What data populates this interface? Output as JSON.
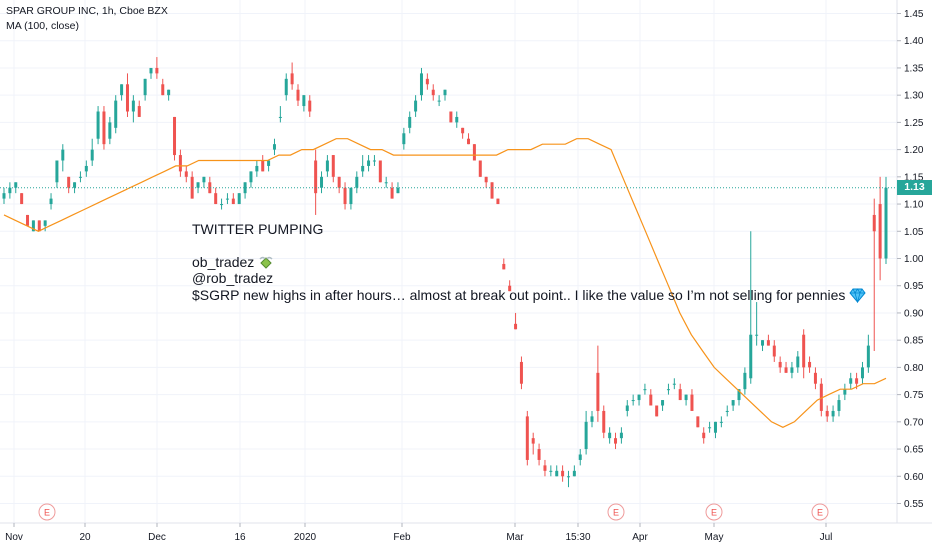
{
  "header": {
    "line1": "SPAR GROUP INC, 1h, Cboe BZX",
    "line2": "MA (100, close)"
  },
  "annotation": {
    "heading": "TWITTER PUMPING",
    "handle": "ob_tradez",
    "handle_icon": "money-with-wings-icon",
    "user": "@rob_tradez",
    "body": "$SGRP new highs in after hours… almost at break out point.. I like the value so I’m not selling for pennies",
    "body_icon": "gem-icon"
  },
  "price_badge": "1.13",
  "colors": {
    "up": "#26a69a",
    "down": "#ef5350",
    "ma": "#f7931a",
    "last_line": "#26a69a"
  },
  "chart_data": {
    "type": "candlestick",
    "symbol": "SPAR GROUP INC, 1h, Cboe BZX",
    "y_ticks": [
      "1.45",
      "1.40",
      "1.35",
      "1.30",
      "1.25",
      "1.20",
      "1.15",
      "1.10",
      "1.05",
      "1.00",
      "0.95",
      "0.90",
      "0.85",
      "0.80",
      "0.75",
      "0.70",
      "0.65",
      "0.60",
      "0.55"
    ],
    "ylim": [
      0.52,
      1.47
    ],
    "x_ticks": [
      "Nov",
      "20",
      "Dec",
      "16",
      "2020",
      "Feb",
      "Mar",
      "15:30",
      "Apr",
      "May",
      "Jul"
    ],
    "earnings_markers": [
      "E",
      "E",
      "E",
      "E"
    ],
    "last_price": 1.13,
    "ma_label": "MA (100, close)",
    "candles": [
      [
        1.11,
        1.13,
        1.1,
        1.12
      ],
      [
        1.12,
        1.14,
        1.11,
        1.13
      ],
      [
        1.13,
        1.14,
        1.12,
        1.14
      ],
      [
        1.12,
        1.12,
        1.1,
        1.1
      ],
      [
        1.08,
        1.08,
        1.06,
        1.06
      ],
      [
        1.05,
        1.07,
        1.05,
        1.07
      ],
      [
        1.07,
        1.07,
        1.05,
        1.05
      ],
      [
        1.06,
        1.07,
        1.05,
        1.07
      ],
      [
        1.1,
        1.12,
        1.09,
        1.11
      ],
      [
        1.14,
        1.18,
        1.13,
        1.18
      ],
      [
        1.18,
        1.21,
        1.16,
        1.2
      ],
      [
        1.15,
        1.15,
        1.12,
        1.13
      ],
      [
        1.13,
        1.14,
        1.12,
        1.14
      ],
      [
        1.15,
        1.16,
        1.14,
        1.15
      ],
      [
        1.16,
        1.18,
        1.15,
        1.17
      ],
      [
        1.18,
        1.22,
        1.17,
        1.2
      ],
      [
        1.22,
        1.28,
        1.21,
        1.27
      ],
      [
        1.27,
        1.28,
        1.2,
        1.21
      ],
      [
        1.22,
        1.26,
        1.21,
        1.25
      ],
      [
        1.24,
        1.3,
        1.23,
        1.29
      ],
      [
        1.3,
        1.32,
        1.29,
        1.32
      ],
      [
        1.32,
        1.34,
        1.26,
        1.27
      ],
      [
        1.27,
        1.3,
        1.25,
        1.29
      ],
      [
        1.28,
        1.29,
        1.26,
        1.26
      ],
      [
        1.3,
        1.33,
        1.29,
        1.33
      ],
      [
        1.34,
        1.35,
        1.33,
        1.35
      ],
      [
        1.35,
        1.37,
        1.33,
        1.34
      ],
      [
        1.32,
        1.33,
        1.3,
        1.3
      ],
      [
        1.3,
        1.31,
        1.29,
        1.31
      ],
      [
        1.26,
        1.26,
        1.18,
        1.19
      ],
      [
        1.19,
        1.2,
        1.15,
        1.16
      ],
      [
        1.16,
        1.17,
        1.14,
        1.15
      ],
      [
        1.15,
        1.16,
        1.11,
        1.11
      ],
      [
        1.13,
        1.14,
        1.12,
        1.14
      ],
      [
        1.14,
        1.15,
        1.13,
        1.15
      ],
      [
        1.14,
        1.15,
        1.12,
        1.12
      ],
      [
        1.12,
        1.13,
        1.1,
        1.1
      ],
      [
        1.1,
        1.11,
        1.09,
        1.1
      ],
      [
        1.11,
        1.12,
        1.1,
        1.11
      ],
      [
        1.11,
        1.12,
        1.1,
        1.1
      ],
      [
        1.1,
        1.12,
        1.1,
        1.12
      ],
      [
        1.12,
        1.14,
        1.11,
        1.14
      ],
      [
        1.14,
        1.16,
        1.13,
        1.16
      ],
      [
        1.16,
        1.18,
        1.15,
        1.17
      ],
      [
        1.18,
        1.19,
        1.16,
        1.16
      ],
      [
        1.17,
        1.18,
        1.16,
        1.18
      ],
      [
        1.2,
        1.22,
        1.19,
        1.21
      ],
      [
        1.26,
        1.28,
        1.25,
        1.26
      ],
      [
        1.3,
        1.34,
        1.29,
        1.33
      ],
      [
        1.34,
        1.36,
        1.31,
        1.32
      ],
      [
        1.31,
        1.32,
        1.28,
        1.29
      ],
      [
        1.28,
        1.3,
        1.27,
        1.3
      ],
      [
        1.29,
        1.3,
        1.26,
        1.27
      ],
      [
        1.18,
        1.2,
        1.08,
        1.12
      ],
      [
        1.13,
        1.16,
        1.12,
        1.15
      ],
      [
        1.16,
        1.19,
        1.15,
        1.18
      ],
      [
        1.19,
        1.19,
        1.14,
        1.15
      ],
      [
        1.15,
        1.15,
        1.12,
        1.13
      ],
      [
        1.13,
        1.14,
        1.09,
        1.1
      ],
      [
        1.1,
        1.13,
        1.09,
        1.13
      ],
      [
        1.13,
        1.16,
        1.12,
        1.15
      ],
      [
        1.16,
        1.19,
        1.15,
        1.17
      ],
      [
        1.17,
        1.19,
        1.16,
        1.18
      ],
      [
        1.18,
        1.19,
        1.17,
        1.18
      ],
      [
        1.18,
        1.18,
        1.14,
        1.14
      ],
      [
        1.14,
        1.15,
        1.13,
        1.14
      ],
      [
        1.13,
        1.14,
        1.11,
        1.11
      ],
      [
        1.12,
        1.14,
        1.12,
        1.13
      ],
      [
        1.21,
        1.24,
        1.2,
        1.23
      ],
      [
        1.24,
        1.27,
        1.23,
        1.26
      ],
      [
        1.27,
        1.3,
        1.26,
        1.29
      ],
      [
        1.3,
        1.35,
        1.29,
        1.34
      ],
      [
        1.33,
        1.34,
        1.31,
        1.32
      ],
      [
        1.31,
        1.32,
        1.29,
        1.3
      ],
      [
        1.29,
        1.3,
        1.28,
        1.29
      ],
      [
        1.3,
        1.31,
        1.29,
        1.31
      ],
      [
        1.27,
        1.27,
        1.25,
        1.25
      ],
      [
        1.25,
        1.27,
        1.24,
        1.26
      ],
      [
        1.24,
        1.24,
        1.22,
        1.23
      ],
      [
        1.22,
        1.23,
        1.21,
        1.21
      ],
      [
        1.21,
        1.21,
        1.18,
        1.18
      ],
      [
        1.18,
        1.18,
        1.15,
        1.15
      ],
      [
        1.15,
        1.15,
        1.13,
        1.14
      ],
      [
        1.14,
        1.14,
        1.11,
        1.11
      ],
      [
        1.11,
        1.11,
        1.1,
        1.1
      ],
      [
        0.99,
        1.0,
        0.98,
        0.98
      ],
      [
        0.95,
        0.96,
        0.94,
        0.94
      ],
      [
        0.88,
        0.9,
        0.87,
        0.87
      ],
      [
        0.81,
        0.82,
        0.76,
        0.77
      ],
      [
        0.71,
        0.72,
        0.62,
        0.63
      ],
      [
        0.67,
        0.68,
        0.64,
        0.66
      ],
      [
        0.65,
        0.66,
        0.62,
        0.63
      ],
      [
        0.62,
        0.63,
        0.6,
        0.61
      ],
      [
        0.61,
        0.62,
        0.6,
        0.61
      ],
      [
        0.6,
        0.62,
        0.6,
        0.61
      ],
      [
        0.61,
        0.62,
        0.59,
        0.6
      ],
      [
        0.6,
        0.61,
        0.58,
        0.6
      ],
      [
        0.6,
        0.62,
        0.6,
        0.61
      ],
      [
        0.63,
        0.65,
        0.62,
        0.64
      ],
      [
        0.65,
        0.72,
        0.64,
        0.7
      ],
      [
        0.7,
        0.72,
        0.69,
        0.71
      ],
      [
        0.79,
        0.84,
        0.7,
        0.72
      ],
      [
        0.72,
        0.73,
        0.67,
        0.68
      ],
      [
        0.67,
        0.69,
        0.66,
        0.68
      ],
      [
        0.67,
        0.68,
        0.65,
        0.66
      ],
      [
        0.67,
        0.69,
        0.66,
        0.68
      ],
      [
        0.72,
        0.74,
        0.71,
        0.73
      ],
      [
        0.74,
        0.75,
        0.73,
        0.74
      ],
      [
        0.74,
        0.75,
        0.73,
        0.75
      ],
      [
        0.76,
        0.77,
        0.75,
        0.76
      ],
      [
        0.75,
        0.76,
        0.73,
        0.73
      ],
      [
        0.73,
        0.73,
        0.71,
        0.71
      ],
      [
        0.73,
        0.74,
        0.72,
        0.74
      ],
      [
        0.76,
        0.77,
        0.75,
        0.76
      ],
      [
        0.77,
        0.78,
        0.76,
        0.77
      ],
      [
        0.76,
        0.77,
        0.74,
        0.74
      ],
      [
        0.74,
        0.75,
        0.73,
        0.75
      ],
      [
        0.75,
        0.76,
        0.72,
        0.72
      ],
      [
        0.71,
        0.71,
        0.69,
        0.69
      ],
      [
        0.68,
        0.69,
        0.66,
        0.67
      ],
      [
        0.69,
        0.7,
        0.68,
        0.69
      ],
      [
        0.68,
        0.7,
        0.67,
        0.7
      ],
      [
        0.7,
        0.71,
        0.69,
        0.7
      ],
      [
        0.72,
        0.73,
        0.71,
        0.72
      ],
      [
        0.73,
        0.74,
        0.72,
        0.74
      ],
      [
        0.74,
        0.76,
        0.73,
        0.76
      ],
      [
        0.76,
        0.8,
        0.75,
        0.79
      ],
      [
        0.78,
        1.05,
        0.77,
        0.86
      ],
      [
        0.86,
        0.92,
        0.84,
        0.86
      ],
      [
        0.84,
        0.85,
        0.83,
        0.85
      ],
      [
        0.85,
        0.86,
        0.84,
        0.84
      ],
      [
        0.84,
        0.85,
        0.81,
        0.82
      ],
      [
        0.81,
        0.82,
        0.79,
        0.8
      ],
      [
        0.8,
        0.81,
        0.79,
        0.79
      ],
      [
        0.79,
        0.81,
        0.78,
        0.8
      ],
      [
        0.8,
        0.83,
        0.79,
        0.82
      ],
      [
        0.86,
        0.87,
        0.78,
        0.8
      ],
      [
        0.81,
        0.82,
        0.79,
        0.8
      ],
      [
        0.79,
        0.8,
        0.76,
        0.77
      ],
      [
        0.77,
        0.78,
        0.71,
        0.72
      ],
      [
        0.72,
        0.73,
        0.7,
        0.71
      ],
      [
        0.71,
        0.73,
        0.7,
        0.72
      ],
      [
        0.72,
        0.75,
        0.71,
        0.74
      ],
      [
        0.75,
        0.77,
        0.74,
        0.76
      ],
      [
        0.77,
        0.79,
        0.76,
        0.78
      ],
      [
        0.78,
        0.79,
        0.76,
        0.77
      ],
      [
        0.78,
        0.81,
        0.77,
        0.8
      ],
      [
        0.8,
        0.86,
        0.79,
        0.84
      ],
      [
        1.08,
        1.11,
        0.83,
        1.05
      ],
      [
        1.1,
        1.15,
        0.96,
        1.0
      ],
      [
        1.0,
        1.15,
        0.99,
        1.13
      ]
    ],
    "ma_series": [
      1.08,
      1.07,
      1.06,
      1.05,
      1.06,
      1.07,
      1.08,
      1.09,
      1.1,
      1.11,
      1.12,
      1.13,
      1.14,
      1.15,
      1.16,
      1.17,
      1.17,
      1.18,
      1.18,
      1.18,
      1.18,
      1.18,
      1.18,
      1.18,
      1.19,
      1.19,
      1.2,
      1.2,
      1.21,
      1.22,
      1.22,
      1.21,
      1.2,
      1.2,
      1.19,
      1.19,
      1.19,
      1.19,
      1.19,
      1.19,
      1.19,
      1.19,
      1.19,
      1.19,
      1.2,
      1.2,
      1.2,
      1.21,
      1.21,
      1.21,
      1.22,
      1.22,
      1.21,
      1.2,
      1.15,
      1.1,
      1.05,
      1.0,
      0.95,
      0.9,
      0.86,
      0.83,
      0.8,
      0.78,
      0.76,
      0.74,
      0.72,
      0.7,
      0.69,
      0.7,
      0.72,
      0.74,
      0.75,
      0.76,
      0.76,
      0.77,
      0.77,
      0.78
    ]
  }
}
